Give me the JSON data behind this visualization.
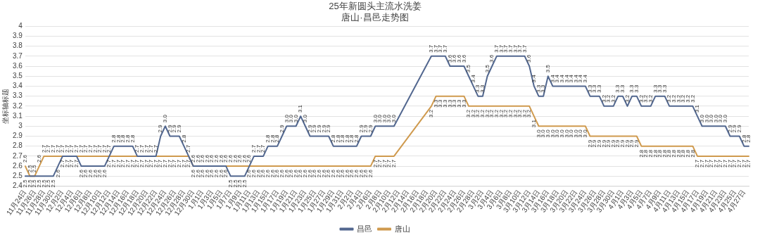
{
  "chart_data": {
    "type": "line",
    "title": "25年新圆头主流水洗姜",
    "subtitle": "唐山·昌邑走势图",
    "ylabel": "坐标轴标题",
    "categories": [
      "11月24日",
      null,
      "11月26日",
      null,
      "11月28日",
      null,
      "11月30日",
      null,
      "12月2日",
      null,
      "12月4日",
      null,
      "12月6日",
      null,
      "12月8日",
      null,
      "12月10日",
      null,
      "12月12日",
      null,
      "12月14日",
      null,
      "12月16日",
      null,
      "12月18日",
      null,
      "12月20日",
      null,
      "12月22日",
      null,
      "12月24日",
      null,
      "12月26日",
      null,
      "12月28日",
      null,
      "12月30日",
      null,
      "1月1日",
      null,
      "1月3日",
      null,
      "1月5日",
      null,
      "1月7日",
      null,
      "1月9日",
      null,
      "1月11日",
      null,
      "1月13日",
      null,
      "1月15日",
      null,
      "1月17日",
      null,
      "1月19日",
      null,
      "1月21日",
      null,
      "1月23日",
      null,
      "1月25日",
      null,
      "1月27日",
      null,
      "1月29日",
      null,
      "1月31日",
      null,
      "2月2日",
      null,
      "2月4日",
      null,
      "2月6日",
      null,
      "2月8日",
      null,
      "2月10日",
      null,
      "2月12日",
      null,
      "2月14日",
      null,
      "2月16日",
      null,
      "2月18日",
      null,
      "2月20日",
      null,
      "2月22日",
      null,
      "2月24日",
      null,
      "2月26日",
      null,
      "2月28日",
      null,
      "3月2日",
      null,
      "3月4日",
      null,
      "3月6日",
      null,
      "3月8日",
      null,
      "3月10日",
      null,
      "3月12日",
      null,
      "3月14日",
      null,
      "3月16日",
      null,
      "3月18日",
      null,
      "3月20日",
      null,
      "3月22日",
      null,
      "3月24日",
      null,
      "3月26日",
      null,
      "3月28日",
      null,
      "3月30日",
      null,
      "4月1日",
      null,
      "4月3日",
      null,
      "4月5日",
      null,
      "4月7日",
      null,
      "4月9日",
      null,
      "4月11日",
      null,
      "4月13日",
      null,
      "4月15日",
      null,
      "4月17日",
      null,
      "4月19日",
      null,
      "4月21日",
      null,
      "4月23日",
      null,
      "4月25日",
      null,
      "4月27日",
      null
    ],
    "series": [
      {
        "name": "昌邑",
        "color": "#52678f",
        "values": [
          2.5,
          2.5,
          2.5,
          2.5,
          2.5,
          2.5,
          2.5,
          2.6,
          2.7,
          2.7,
          2.7,
          2.7,
          2.6,
          2.6,
          2.6,
          2.6,
          2.6,
          2.6,
          2.7,
          2.8,
          2.8,
          2.8,
          2.8,
          2.8,
          2.7,
          2.7,
          2.7,
          2.7,
          2.7,
          2.9,
          3,
          2.9,
          2.9,
          2.9,
          2.8,
          2.7,
          2.6,
          2.6,
          2.6,
          2.6,
          2.6,
          2.6,
          2.6,
          2.6,
          2.5,
          2.5,
          2.5,
          2.5,
          2.6,
          2.7,
          2.7,
          2.7,
          2.8,
          2.8,
          2.8,
          2.9,
          3,
          3,
          3,
          3.1,
          3,
          2.9,
          2.9,
          2.9,
          2.9,
          2.9,
          2.8,
          2.8,
          2.8,
          2.8,
          2.8,
          2.8,
          2.9,
          2.9,
          2.9,
          3,
          3,
          3,
          3,
          3,
          null,
          null,
          null,
          null,
          null,
          null,
          null,
          3.7,
          3.7,
          3.7,
          3.7,
          3.6,
          3.6,
          3.6,
          3.6,
          3.5,
          3.4,
          3.3,
          3.3,
          3.5,
          3.6,
          3.7,
          3.7,
          3.7,
          3.7,
          3.7,
          3.7,
          3.7,
          3.6,
          3.4,
          3.3,
          3.3,
          3.5,
          3.4,
          3.4,
          3.4,
          3.4,
          3.4,
          3.4,
          3.4,
          3.4,
          3.3,
          3.3,
          3.3,
          3.2,
          3.2,
          3.2,
          3.3,
          3.3,
          3.2,
          3.3,
          3.3,
          3.2,
          3.2,
          3.2,
          3.3,
          3.3,
          3.3,
          3.2,
          3.2,
          3.2,
          3.2,
          3.2,
          3.2,
          3.1,
          3,
          3,
          3,
          3,
          3,
          3,
          2.9,
          2.9,
          2.9,
          2.8,
          2.8
        ],
        "value_labels": [
          "2.5",
          "2.5",
          "2.5",
          "2.5",
          "2.5",
          "2.5",
          "2.5",
          "2.6",
          "2.7",
          "2.7",
          "2.7",
          "2.7",
          "2.6",
          "2.6",
          "2.6",
          "2.6",
          "2.6",
          "2.6",
          "2.7",
          "2.8",
          "2.8",
          "2.8",
          "2.8",
          "2.8",
          "2.7",
          "2.7",
          "2.7",
          "2.7",
          "2.7",
          "2.9",
          "3.0",
          "2.9",
          "2.9",
          "2.9",
          "2.8",
          "2.7",
          "2.6",
          "2.6",
          "2.6",
          "2.6",
          "2.6",
          "2.6",
          "2.6",
          "2.6",
          "2.5",
          "2.5",
          "2.5",
          "2.5",
          "2.6",
          "2.7",
          "2.7",
          "2.7",
          "2.8",
          "2.8",
          "2.8",
          "2.9",
          "3.0",
          "3.0",
          "3.0",
          "3.1",
          "3.0",
          "2.9",
          "2.9",
          "2.9",
          "2.9",
          "2.9",
          "2.8",
          "2.8",
          "2.8",
          "2.8",
          "2.8",
          "2.8",
          "2.9",
          "2.9",
          "2.9",
          "3.0",
          "3.0",
          "3.0",
          "3.0",
          "3.0",
          null,
          null,
          null,
          null,
          null,
          null,
          null,
          "3.7",
          "3.7",
          "3.7",
          "3.7",
          "3.6",
          "3.6",
          "3.6",
          "3.6",
          "3.5",
          "3.4",
          "3.3",
          "3.3",
          "3.5",
          "3.6",
          "3.7",
          "3.7",
          "3.7",
          "3.7",
          "3.7",
          "3.7",
          "3.7",
          "3.6",
          "3.4",
          "3.3",
          "3.3",
          "3.5",
          "3.4",
          "3.4",
          "3.4",
          "3.4",
          "3.4",
          "3.4",
          "3.4",
          "3.4",
          "3.3",
          "3.3",
          "3.3",
          "3.2",
          "3.2",
          "3.2",
          "3.3",
          "3.3",
          "3.2",
          "3.3",
          "3.3",
          "3.2",
          "3.2",
          "3.2",
          "3.3",
          "3.3",
          "3.3",
          "3.2",
          "3.2",
          "3.2",
          "3.2",
          "3.2",
          "3.2",
          "3.1",
          "3.0",
          "3.0",
          "3.0",
          "3.0",
          "3.0",
          "3.0",
          "2.9",
          "2.9",
          "2.9",
          "2.8",
          "2.8"
        ]
      },
      {
        "name": "唐山",
        "color": "#cf9a4e",
        "values": [
          2.6,
          2.5,
          2.5,
          2.6,
          2.7,
          2.7,
          2.7,
          2.7,
          2.7,
          2.7,
          2.7,
          2.7,
          2.7,
          2.7,
          2.7,
          2.7,
          2.7,
          2.7,
          2.7,
          2.7,
          2.7,
          2.7,
          2.7,
          2.7,
          2.7,
          2.7,
          2.7,
          2.7,
          2.7,
          2.7,
          2.7,
          2.7,
          2.7,
          2.7,
          2.7,
          2.7,
          2.6,
          2.6,
          2.6,
          2.6,
          2.6,
          2.6,
          2.6,
          2.6,
          2.6,
          2.6,
          2.6,
          2.6,
          2.6,
          2.6,
          2.6,
          2.6,
          2.6,
          2.6,
          2.6,
          2.6,
          2.6,
          2.6,
          2.6,
          2.6,
          2.6,
          2.6,
          2.6,
          2.6,
          2.6,
          2.6,
          2.6,
          2.6,
          2.6,
          2.6,
          2.6,
          2.6,
          2.6,
          2.6,
          2.6,
          2.7,
          2.7,
          2.7,
          2.7,
          2.7,
          null,
          null,
          null,
          null,
          null,
          null,
          null,
          3.2,
          3.3,
          3.3,
          3.3,
          3.3,
          3.3,
          3.3,
          3.3,
          3.2,
          3.2,
          3.2,
          3.2,
          3.2,
          3.2,
          3.2,
          3.2,
          3.2,
          3.2,
          3.2,
          3.2,
          3.2,
          3.2,
          3.1,
          3,
          3,
          3,
          3,
          3,
          3,
          3,
          3,
          3,
          3,
          3,
          2.9,
          2.9,
          2.9,
          2.9,
          2.9,
          2.9,
          2.9,
          2.9,
          2.9,
          2.9,
          2.9,
          2.8,
          2.8,
          2.8,
          2.8,
          2.8,
          2.8,
          2.8,
          2.8,
          2.8,
          2.8,
          2.8,
          2.8,
          2.7,
          2.7,
          2.7,
          2.7,
          2.7,
          2.7,
          2.7,
          2.7,
          2.7,
          2.7,
          2.7,
          2.7
        ],
        "value_labels": [
          "2.6",
          "2.5",
          "2.5",
          "2.6",
          "2.7",
          "2.7",
          "2.7",
          "2.7",
          "2.7",
          "2.7",
          "2.7",
          "2.7",
          "2.7",
          "2.7",
          "2.7",
          "2.7",
          "2.7",
          "2.7",
          "2.7",
          "2.7",
          "2.7",
          "2.7",
          "2.7",
          "2.7",
          "2.7",
          "2.7",
          "2.7",
          "2.7",
          "2.7",
          "2.7",
          "2.7",
          "2.7",
          "2.7",
          "2.7",
          "2.7",
          "2.7",
          "2.6",
          "2.6",
          "2.6",
          "2.6",
          "2.6",
          "2.6",
          "2.6",
          "2.6",
          "2.6",
          "2.6",
          "2.6",
          "2.6",
          "2.6",
          "2.6",
          "2.6",
          "2.6",
          "2.6",
          "2.6",
          "2.6",
          "2.6",
          "2.6",
          "2.6",
          "2.6",
          "2.6",
          "2.6",
          "2.6",
          "2.6",
          "2.6",
          "2.6",
          "2.6",
          "2.6",
          "2.6",
          "2.6",
          "2.6",
          "2.6",
          "2.6",
          "2.6",
          "2.6",
          "2.6",
          "2.7",
          "2.7",
          "2.7",
          "2.7",
          "2.7",
          null,
          null,
          null,
          null,
          null,
          null,
          null,
          "3.2",
          "3.3",
          "3.3",
          "3.3",
          "3.3",
          "3.3",
          "3.3",
          "3.3",
          "3.2",
          "3.2",
          "3.2",
          "3.2",
          "3.2",
          "3.2",
          "3.2",
          "3.2",
          "3.2",
          "3.2",
          "3.2",
          "3.2",
          "3.2",
          "3.2",
          "3.1",
          "3.0",
          "3.0",
          "3.0",
          "3.0",
          "3.0",
          "3.0",
          "3.0",
          "3.0",
          "3.0",
          "3.0",
          "3.0",
          "2.9",
          "2.9",
          "2.9",
          "2.9",
          "2.9",
          "2.9",
          "2.9",
          "2.9",
          "2.9",
          "2.9",
          "2.9",
          "2.8",
          "2.8",
          "2.8",
          "2.8",
          "2.8",
          "2.8",
          "2.8",
          "2.8",
          "2.8",
          "2.8",
          "2.8",
          "2.8",
          "2.7",
          "2.7",
          "2.7",
          "2.7",
          "2.7",
          "2.7",
          "2.7",
          "2.7",
          "2.7",
          "2.7",
          "2.7",
          "2.7"
        ]
      }
    ],
    "ylim": [
      2.4,
      4
    ],
    "yticks": [
      2.4,
      2.5,
      2.6,
      2.7,
      2.8,
      2.9,
      3,
      3.1,
      3.2,
      3.3,
      3.4,
      3.5,
      3.6,
      3.7,
      3.8,
      3.9,
      4
    ],
    "grid": "y",
    "legend": "bottom"
  }
}
